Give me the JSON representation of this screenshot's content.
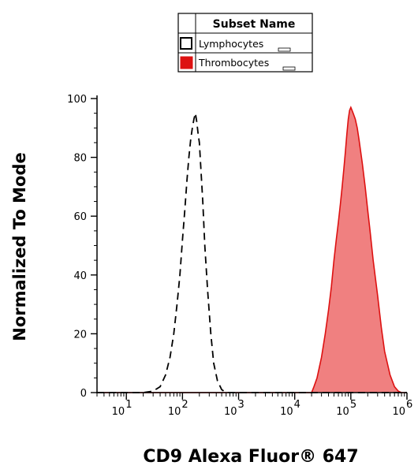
{
  "chart_data": {
    "type": "area",
    "xlabel": "CD9 Alexa Fluor® 647",
    "ylabel": "Normalized To Mode",
    "x_scale": "log",
    "xlim": [
      3,
      1000000
    ],
    "ylim": [
      0,
      100
    ],
    "x_ticks": [
      {
        "value": 10,
        "base": "10",
        "exp": "1"
      },
      {
        "value": 100,
        "base": "10",
        "exp": "2"
      },
      {
        "value": 1000,
        "base": "10",
        "exp": "3"
      },
      {
        "value": 10000,
        "base": "10",
        "exp": "4"
      },
      {
        "value": 100000,
        "base": "10",
        "exp": "5"
      },
      {
        "value": 1000000,
        "base": "10",
        "exp": "6"
      }
    ],
    "y_ticks": [
      0,
      20,
      40,
      60,
      80,
      100
    ],
    "legend": {
      "title": "Subset Name",
      "placement": "top-center"
    },
    "series": [
      {
        "name": "Lymphocytes",
        "style": "dashed-outline",
        "stroke": "#000000",
        "fill": "none",
        "points": [
          [
            3,
            0
          ],
          [
            20,
            0
          ],
          [
            30,
            0.5
          ],
          [
            40,
            2
          ],
          [
            50,
            6
          ],
          [
            60,
            12
          ],
          [
            70,
            20
          ],
          [
            80,
            30
          ],
          [
            90,
            40
          ],
          [
            100,
            52
          ],
          [
            110,
            62
          ],
          [
            120,
            72
          ],
          [
            130,
            80
          ],
          [
            140,
            86
          ],
          [
            150,
            90
          ],
          [
            160,
            93
          ],
          [
            170,
            95
          ],
          [
            180,
            92
          ],
          [
            190,
            88
          ],
          [
            200,
            85
          ],
          [
            210,
            78
          ],
          [
            230,
            65
          ],
          [
            250,
            50
          ],
          [
            280,
            35
          ],
          [
            320,
            20
          ],
          [
            360,
            10
          ],
          [
            420,
            4
          ],
          [
            500,
            1
          ],
          [
            600,
            0
          ],
          [
            1000000,
            0
          ]
        ]
      },
      {
        "name": "Thrombocytes",
        "style": "filled",
        "stroke": "#dd1111",
        "fill": "#f08080",
        "points": [
          [
            3,
            0
          ],
          [
            20000,
            0
          ],
          [
            22000,
            2
          ],
          [
            25000,
            5
          ],
          [
            30000,
            12
          ],
          [
            35000,
            20
          ],
          [
            40000,
            28
          ],
          [
            45000,
            36
          ],
          [
            50000,
            45
          ],
          [
            55000,
            52
          ],
          [
            60000,
            58
          ],
          [
            65000,
            64
          ],
          [
            70000,
            70
          ],
          [
            75000,
            76
          ],
          [
            80000,
            82
          ],
          [
            85000,
            88
          ],
          [
            90000,
            93
          ],
          [
            95000,
            96
          ],
          [
            100000,
            97
          ],
          [
            105000,
            96
          ],
          [
            110000,
            95
          ],
          [
            120000,
            93
          ],
          [
            130000,
            90
          ],
          [
            140000,
            86
          ],
          [
            160000,
            78
          ],
          [
            180000,
            70
          ],
          [
            200000,
            62
          ],
          [
            220000,
            55
          ],
          [
            250000,
            45
          ],
          [
            300000,
            33
          ],
          [
            350000,
            22
          ],
          [
            400000,
            14
          ],
          [
            500000,
            6
          ],
          [
            600000,
            2
          ],
          [
            700000,
            0.5
          ],
          [
            800000,
            0
          ],
          [
            1000000,
            0
          ]
        ]
      }
    ]
  },
  "colors": {
    "lymphocytes_swatch": "#ffffff",
    "thrombocytes_swatch": "#dd1111"
  }
}
